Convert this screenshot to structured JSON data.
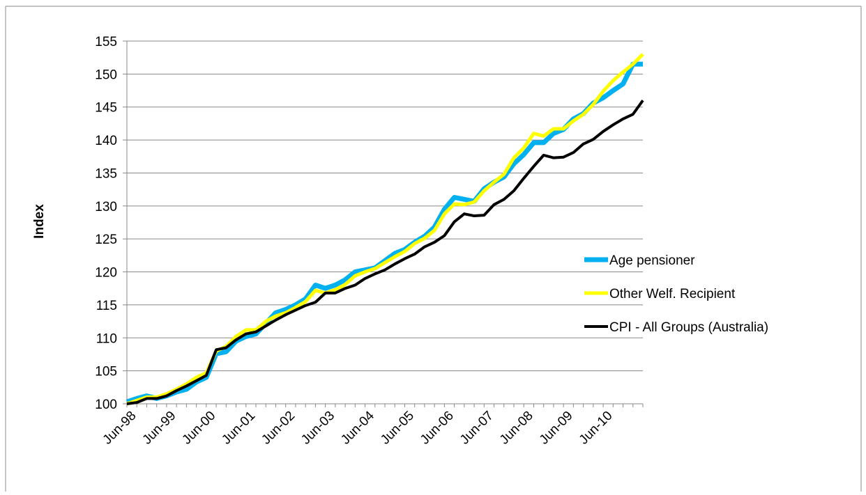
{
  "chart_data": {
    "type": "line",
    "y_label": "Index",
    "categories": [
      "Jun-98",
      null,
      null,
      null,
      "Jun-99",
      null,
      null,
      null,
      "Jun-00",
      null,
      null,
      null,
      "Jun-01",
      null,
      null,
      null,
      "Jun-02",
      null,
      null,
      null,
      "Jun-03",
      null,
      null,
      null,
      "Jun-04",
      null,
      null,
      null,
      "Jun-05",
      null,
      null,
      null,
      "Jun-06",
      null,
      null,
      null,
      "Jun-07",
      null,
      null,
      null,
      "Jun-08",
      null,
      null,
      null,
      "Jun-09",
      null,
      null,
      null,
      "Jun-10",
      null,
      null,
      null,
      null
    ],
    "series": [
      {
        "name": "Age pensioner",
        "color": "#00b0f0",
        "width": 7,
        "values": [
          100.3,
          100.8,
          101.2,
          100.8,
          101.2,
          101.8,
          102.2,
          103.3,
          104,
          107.6,
          107.9,
          109.5,
          110.2,
          110.6,
          112.2,
          113.8,
          114.3,
          115,
          115.9,
          118,
          117.5,
          118,
          118.8,
          120,
          120.3,
          120.6,
          121.7,
          122.8,
          123.4,
          124.5,
          125.4,
          126.8,
          129.5,
          131.3,
          131,
          130.7,
          132.6,
          133.6,
          134.4,
          136.4,
          137.8,
          139.6,
          139.6,
          141,
          141.6,
          143.2,
          144,
          145.6,
          146.4,
          147.5,
          148.5,
          151.5,
          151.5
        ]
      },
      {
        "name": "Other Welf. Recipient",
        "color": "#ffff00",
        "width": 5,
        "values": [
          100,
          100.5,
          101,
          101,
          101.5,
          102.2,
          103,
          104,
          104.7,
          108,
          108.7,
          110.2,
          111.2,
          111.2,
          112.5,
          113.3,
          113.8,
          114.6,
          115.5,
          117.2,
          116.8,
          117.3,
          118.1,
          119.4,
          120,
          120.5,
          121.4,
          122.3,
          123.1,
          124.3,
          125.1,
          126.3,
          128.8,
          130.3,
          130.2,
          130.6,
          132.3,
          133.6,
          134.8,
          137.3,
          138.8,
          141,
          140.6,
          141.7,
          141.7,
          142.9,
          143.9,
          145.4,
          147.4,
          149,
          150.3,
          151.5,
          153
        ]
      },
      {
        "name": "CPI - All Groups (Australia)",
        "color": "#000000",
        "width": 4,
        "values": [
          100,
          100.2,
          100.8,
          100.8,
          101.2,
          102,
          102.7,
          103.5,
          104.3,
          108.2,
          108.5,
          109.7,
          110.6,
          110.9,
          111.8,
          112.7,
          113.5,
          114.2,
          114.9,
          115.4,
          116.8,
          116.8,
          117.5,
          118,
          119,
          119.7,
          120.3,
          121.2,
          122,
          122.7,
          123.8,
          124.5,
          125.5,
          127.6,
          128.8,
          128.5,
          128.6,
          130.2,
          131,
          132.3,
          134.2,
          136,
          137.7,
          137.3,
          137.4,
          138.1,
          139.4,
          140.1,
          141.3,
          142.3,
          143.2,
          143.9,
          146
        ]
      }
    ],
    "ylim": [
      100,
      155
    ],
    "yticks": [
      100,
      105,
      110,
      115,
      120,
      125,
      130,
      135,
      140,
      145,
      150,
      155
    ],
    "grid": true,
    "legend": "right"
  }
}
